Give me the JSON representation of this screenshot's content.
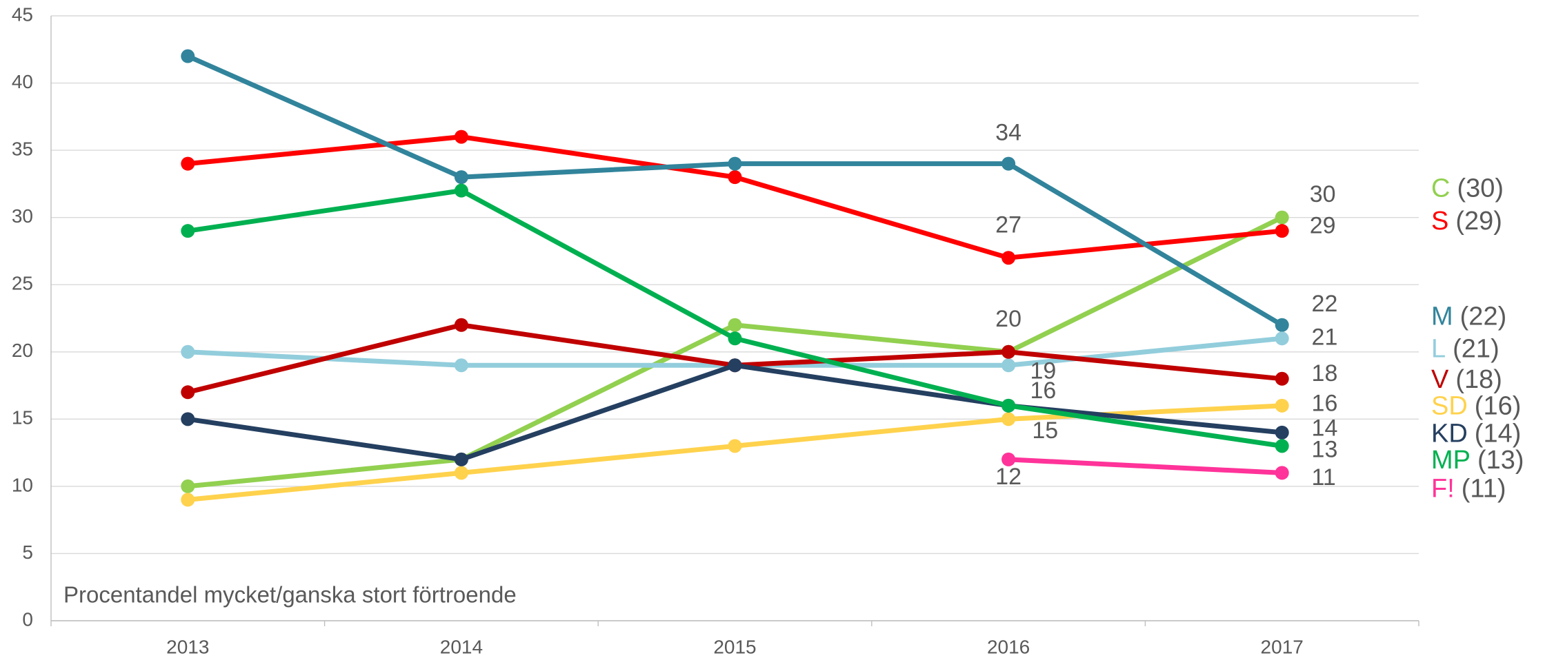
{
  "chart_data": {
    "type": "line",
    "annotation": "Procentandel mycket/ganska stort förtroende",
    "categories": [
      "2013",
      "2014",
      "2015",
      "2016",
      "2017"
    ],
    "ylim": [
      0,
      45
    ],
    "yticks": [
      0,
      5,
      10,
      15,
      20,
      25,
      30,
      35,
      40,
      45
    ],
    "grid": true,
    "legend": "right",
    "series": [
      {
        "name": "C",
        "legend_note": "(30)",
        "color": "#92d050",
        "values": [
          10,
          12,
          22,
          20,
          30
        ],
        "data_labels_at": [
          4
        ]
      },
      {
        "name": "S",
        "legend_note": "(29)",
        "color": "#ff0000",
        "values": [
          34,
          36,
          33,
          27,
          29
        ],
        "data_labels_at": [
          3,
          4
        ]
      },
      {
        "name": "M",
        "legend_note": "(22)",
        "color": "#31849b",
        "values": [
          42,
          33,
          34,
          34,
          22
        ],
        "data_labels_at": [
          3,
          4
        ]
      },
      {
        "name": "L",
        "legend_note": "(21)",
        "color": "#92cddc",
        "values": [
          20,
          19,
          19,
          19,
          21
        ],
        "data_labels_at": [
          3,
          4
        ]
      },
      {
        "name": "V",
        "legend_note": "(18)",
        "color": "#c00000",
        "values": [
          17,
          22,
          19,
          20,
          18
        ],
        "data_labels_at": [
          3,
          4
        ]
      },
      {
        "name": "SD",
        "legend_note": "(16)",
        "color": "#ffd24d",
        "values": [
          9,
          11,
          13,
          15,
          16
        ],
        "data_labels_at": [
          3,
          4
        ]
      },
      {
        "name": "KD",
        "legend_note": "(14)",
        "color": "#243f60",
        "values": [
          15,
          12,
          19,
          16,
          14
        ],
        "data_labels_at": [
          3,
          4
        ]
      },
      {
        "name": "MP",
        "legend_note": "(13)",
        "color": "#00b050",
        "values": [
          29,
          32,
          21,
          16,
          13
        ],
        "data_labels_at": [
          4
        ]
      },
      {
        "name": "F!",
        "legend_note": "(11)",
        "color": "#ff3399",
        "values": [
          null,
          null,
          null,
          12,
          11
        ],
        "data_labels_at": [
          3,
          4
        ]
      }
    ]
  }
}
